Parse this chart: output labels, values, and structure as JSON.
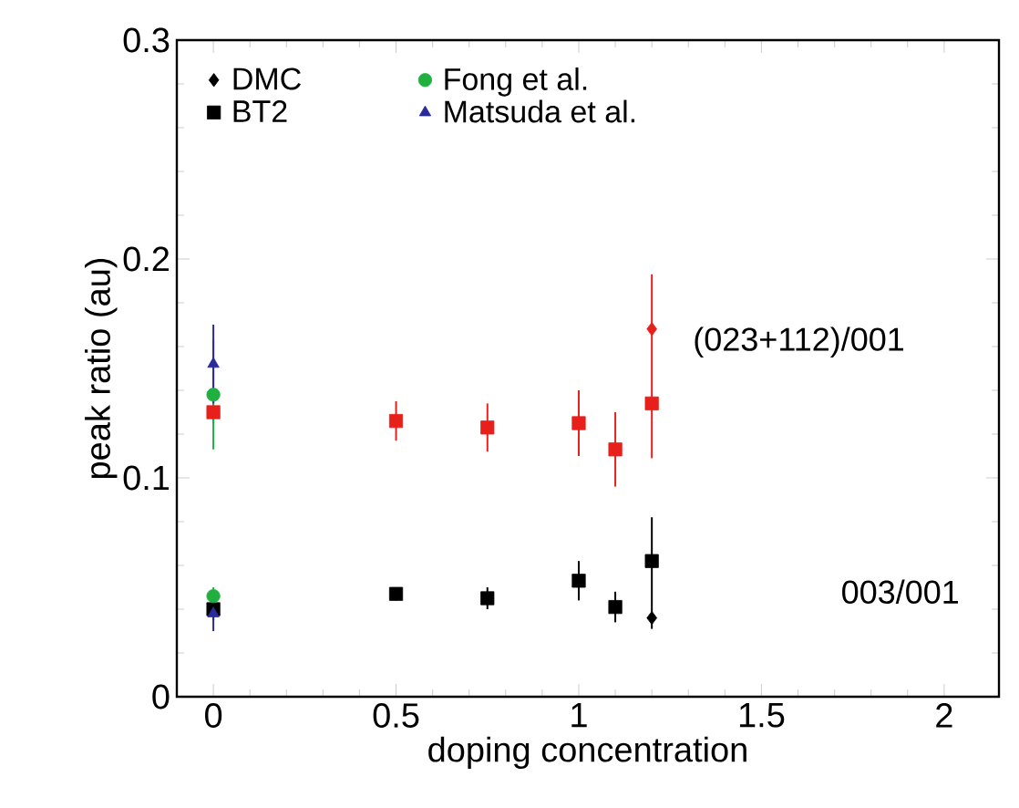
{
  "chart_data": {
    "type": "scatter",
    "xlabel": "doping concentration",
    "ylabel": "peak ratio (au)",
    "xlim": [
      -0.1,
      2.15
    ],
    "ylim": [
      0,
      0.3
    ],
    "xticks": [
      0,
      0.5,
      1,
      1.5,
      2
    ],
    "yticks": [
      0,
      0.1,
      0.2,
      0.3
    ],
    "legend": "top left",
    "grid": false,
    "series": [
      {
        "name": "DMC",
        "color": "#000000",
        "marker": "diamond",
        "x": [
          1.2
        ],
        "values": [
          0.036
        ]
      },
      {
        "color": "#e8201c",
        "marker": "diamond",
        "x": [
          1.2
        ],
        "values": [
          0.168
        ]
      },
      {
        "name": "BT2",
        "color": "#000000",
        "marker": "square",
        "x": [
          0,
          0.5,
          0.75,
          1,
          1.1,
          1.2
        ],
        "values": [
          0.04,
          0.047,
          0.045,
          0.053,
          0.041,
          0.062
        ],
        "errors": [
          0.005,
          0.003,
          0.005,
          0.009,
          0.007,
          [
            0.031,
            0.082
          ]
        ]
      },
      {
        "color": "#e8201c",
        "marker": "square",
        "x": [
          0,
          0.5,
          0.75,
          1,
          1.1,
          1.2
        ],
        "values": [
          0.13,
          0.126,
          0.123,
          0.125,
          0.113,
          0.134
        ],
        "errors": [
          0.005,
          0.009,
          0.011,
          0.015,
          0.017,
          [
            0.109,
            0.193
          ]
        ]
      },
      {
        "name": "Fong et al.",
        "color": "#1fb040",
        "marker": "circle",
        "x": [
          0,
          0
        ],
        "values": [
          0.138,
          0.046
        ],
        "errors": [
          0.025,
          0.004
        ]
      },
      {
        "name": "Matsuda et al.",
        "color": "#2a2a9a",
        "marker": "triangle",
        "x": [
          0,
          0
        ],
        "values": [
          0.152,
          0.038
        ],
        "errors": [
          0.018,
          0.008
        ]
      }
    ],
    "annotations": [
      "(023+112)/001",
      "003/001"
    ]
  }
}
